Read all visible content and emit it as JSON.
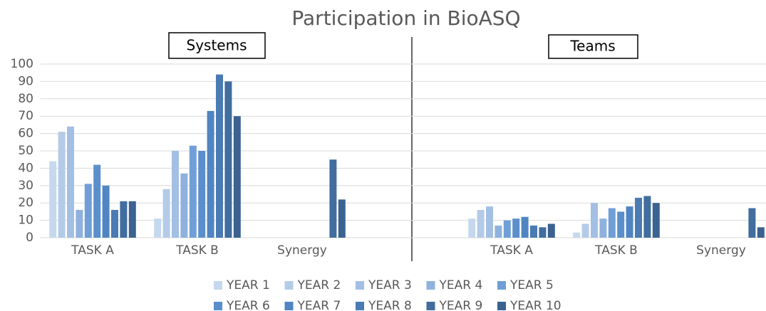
{
  "chart_data": {
    "type": "bar",
    "title": "Participation in BioASQ",
    "panel_labels": [
      "Systems",
      "Teams"
    ],
    "categories": [
      "TASK A",
      "TASK B",
      "Synergy",
      null,
      "TASK A",
      "TASK B",
      "Synergy"
    ],
    "ylim": [
      0,
      100
    ],
    "yticks": [
      0,
      10,
      20,
      30,
      40,
      50,
      60,
      70,
      80,
      90,
      100
    ],
    "grid": true,
    "legend": "bottom",
    "series": [
      {
        "name": "YEAR 1",
        "color": "#c5d8ee",
        "values": [
          44,
          11,
          null,
          null,
          11,
          3,
          null
        ]
      },
      {
        "name": "YEAR 2",
        "color": "#b4cbe8",
        "values": [
          61,
          28,
          null,
          null,
          16,
          8,
          null
        ]
      },
      {
        "name": "YEAR 3",
        "color": "#a3bfe3",
        "values": [
          64,
          50,
          null,
          null,
          18,
          20,
          null
        ]
      },
      {
        "name": "YEAR 4",
        "color": "#8eb2dd",
        "values": [
          16,
          37,
          null,
          null,
          7,
          11,
          null
        ]
      },
      {
        "name": "YEAR 5",
        "color": "#6f9fd6",
        "values": [
          31,
          53,
          null,
          null,
          10,
          17,
          null
        ]
      },
      {
        "name": "YEAR 6",
        "color": "#5b8fcc",
        "values": [
          42,
          50,
          null,
          null,
          11,
          15,
          null
        ]
      },
      {
        "name": "YEAR 7",
        "color": "#4f85c2",
        "values": [
          30,
          73,
          null,
          null,
          12,
          18,
          null
        ]
      },
      {
        "name": "YEAR 8",
        "color": "#4a7bb2",
        "values": [
          16,
          94,
          null,
          null,
          7,
          23,
          null
        ]
      },
      {
        "name": "YEAR 9",
        "color": "#416d9f",
        "values": [
          21,
          90,
          45,
          null,
          6,
          24,
          17
        ]
      },
      {
        "name": "YEAR 10",
        "color": "#3b6290",
        "values": [
          21,
          70,
          22,
          null,
          8,
          20,
          6
        ]
      }
    ]
  }
}
